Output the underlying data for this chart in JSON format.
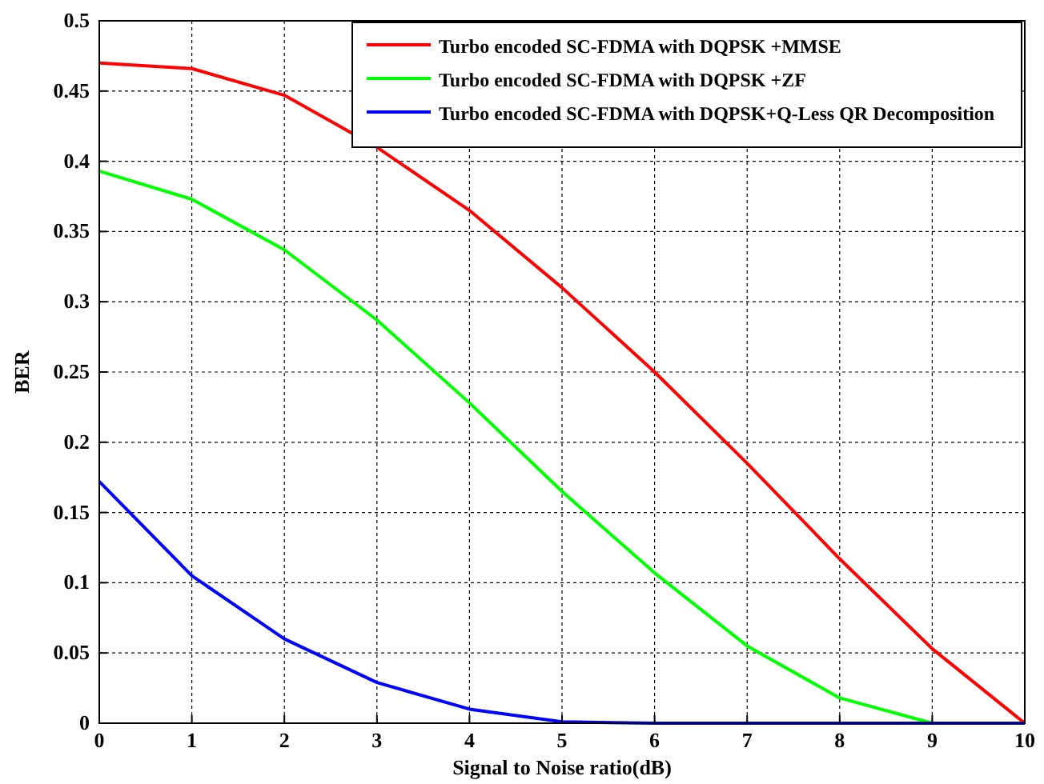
{
  "chart_data": {
    "type": "line",
    "xlabel": "Signal to Noise ratio(dB)",
    "ylabel": "BER",
    "x": [
      0,
      1,
      2,
      3,
      4,
      5,
      6,
      7,
      8,
      9,
      10
    ],
    "series": [
      {
        "name": "Turbo encoded SC-FDMA with DQPSK +MMSE",
        "color": "#ff0000",
        "values": [
          0.47,
          0.466,
          0.447,
          0.41,
          0.365,
          0.31,
          0.25,
          0.185,
          0.117,
          0.053,
          0
        ]
      },
      {
        "name": "Turbo encoded SC-FDMA with DQPSK +ZF",
        "color": "#00ff00",
        "values": [
          0.393,
          0.373,
          0.337,
          0.287,
          0.228,
          0.165,
          0.107,
          0.055,
          0.018,
          0,
          0
        ]
      },
      {
        "name": "Turbo encoded SC-FDMA with DQPSK+Q-Less QR Decomposition",
        "color": "#0000ff",
        "values": [
          0.172,
          0.105,
          0.06,
          0.029,
          0.01,
          0.001,
          0,
          0,
          0,
          0,
          0
        ]
      }
    ],
    "xlim": [
      0,
      10
    ],
    "xticks": [
      0,
      1,
      2,
      3,
      4,
      5,
      6,
      7,
      8,
      9,
      10
    ],
    "ylim": [
      0,
      0.5
    ],
    "yticks": [
      0,
      0.05,
      0.1,
      0.15,
      0.2,
      0.25,
      0.3,
      0.35,
      0.4,
      0.45,
      0.5
    ],
    "grid": true,
    "legend": "top right",
    "line_style": "solid",
    "marker": "none"
  }
}
